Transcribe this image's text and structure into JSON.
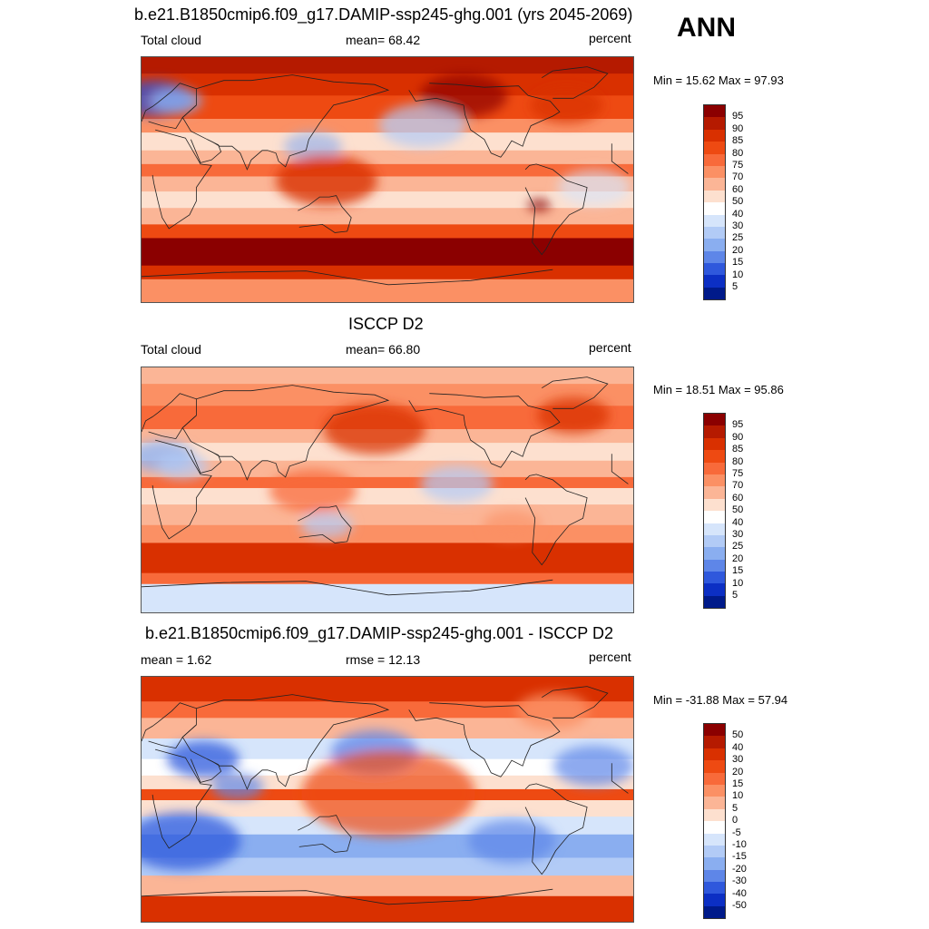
{
  "season": "ANN",
  "panels": [
    {
      "title": "b.e21.B1850cmip6.f09_g17.DAMIP-ssp245-ghg.001 (yrs 2045-2069)",
      "left_label": "Total cloud",
      "center_label": "mean=  68.42",
      "right_label": "percent",
      "minmax": "Min =  15.62 Max =  97.93",
      "colorbar": {
        "ticks": [
          "95",
          "90",
          "85",
          "80",
          "75",
          "70",
          "60",
          "50",
          "40",
          "30",
          "25",
          "20",
          "15",
          "10",
          "5"
        ],
        "colors": [
          "#8b0000",
          "#b51a00",
          "#d93000",
          "#ee4a12",
          "#f86a3a",
          "#fb9064",
          "#fbb596",
          "#fde0cf",
          "#ffffff",
          "#d6e5fb",
          "#b2cbf6",
          "#8aaef0",
          "#5e86e8",
          "#2f58dc",
          "#0c2fc4",
          "#001a8a"
        ]
      },
      "map_style": "model"
    },
    {
      "title": "ISCCP D2",
      "left_label": "Total cloud",
      "center_label": "mean=  66.80",
      "right_label": "percent",
      "minmax": "Min =  18.51 Max =  95.86",
      "colorbar": {
        "ticks": [
          "95",
          "90",
          "85",
          "80",
          "75",
          "70",
          "60",
          "50",
          "40",
          "30",
          "25",
          "20",
          "15",
          "10",
          "5"
        ],
        "colors": [
          "#8b0000",
          "#b51a00",
          "#d93000",
          "#ee4a12",
          "#f86a3a",
          "#fb9064",
          "#fbb596",
          "#fde0cf",
          "#ffffff",
          "#d6e5fb",
          "#b2cbf6",
          "#8aaef0",
          "#5e86e8",
          "#2f58dc",
          "#0c2fc4",
          "#001a8a"
        ]
      },
      "map_style": "obs"
    },
    {
      "title": "b.e21.B1850cmip6.f09_g17.DAMIP-ssp245-ghg.001 - ISCCP D2",
      "left_label": "mean =   1.62",
      "center_label": "rmse =  12.13",
      "right_label": "percent",
      "minmax": "Min = -31.88 Max =  57.94",
      "colorbar": {
        "ticks": [
          "50",
          "40",
          "30",
          "20",
          "15",
          "10",
          "5",
          "0",
          "-5",
          "-10",
          "-15",
          "-20",
          "-30",
          "-40",
          "-50"
        ],
        "colors": [
          "#8b0000",
          "#b51a00",
          "#d93000",
          "#ee4a12",
          "#f86a3a",
          "#fb9064",
          "#fbb596",
          "#fde0cf",
          "#ffffff",
          "#d6e5fb",
          "#b2cbf6",
          "#8aaef0",
          "#5e86e8",
          "#2f58dc",
          "#0c2fc4",
          "#001a8a"
        ]
      },
      "map_style": "diff"
    }
  ]
}
